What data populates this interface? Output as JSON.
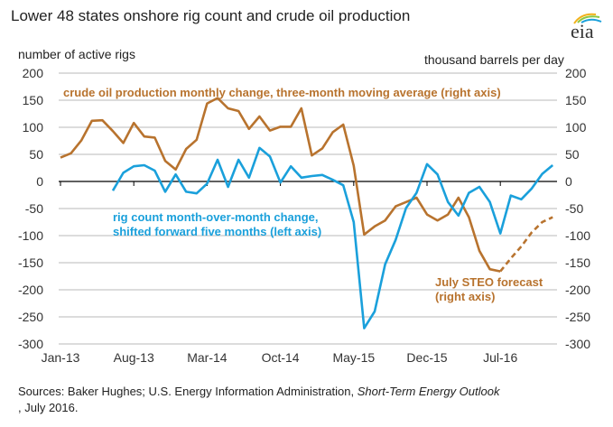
{
  "title": "Lower 48 states onshore rig count and crude oil production",
  "logo_text": "eia",
  "sources": {
    "prefix": "Sources: Baker Hughes; U.S. Energy Information Administration, ",
    "italic": "Short-Term Energy Outlook",
    "suffix": ", July 2016."
  },
  "chart_data": {
    "type": "line",
    "ylabel_left": "number of active rigs",
    "ylabel_right": "thousand barrels per day",
    "ylim": [
      -300,
      200
    ],
    "yticks": [
      "200",
      "150",
      "100",
      "50",
      "0",
      "-50",
      "-100",
      "-150",
      "-200",
      "-250",
      "-300"
    ],
    "xticks": [
      "Jan-13",
      "Aug-13",
      "Mar-14",
      "Oct-14",
      "May-15",
      "Dec-15",
      "Jul-16"
    ],
    "x_start": "Jan-13",
    "x_end": "Dec-16",
    "grid": true,
    "colors": {
      "production": "#B8732E",
      "rigs": "#1AA0DB"
    },
    "annotations": {
      "production": "crude oil production monthly change, three-month moving average (right axis)",
      "rigs_line1": "rig count month-over-month change,",
      "rigs_line2": "shifted forward five months (left axis)",
      "forecast_line1": "July STEO forecast",
      "forecast_line2": "(right axis)"
    },
    "series": [
      {
        "key": "production",
        "start": "Jan-13",
        "values": [
          44,
          52,
          76,
          112,
          113,
          93,
          71,
          108,
          83,
          81,
          38,
          22,
          60,
          77,
          144,
          154,
          135,
          130,
          97,
          120,
          94,
          101,
          101,
          135,
          48,
          61,
          91,
          105,
          29,
          -98,
          -83,
          -72,
          -46,
          -38,
          -30,
          -61,
          -72,
          -61,
          -30,
          -66,
          -128,
          -162,
          -166
        ]
      },
      {
        "key": "forecast",
        "start": "Jul-16",
        "values": [
          -166,
          -142,
          -120,
          -94,
          -75,
          -66
        ]
      },
      {
        "key": "rigs",
        "start": "Jun-13",
        "values": [
          -17,
          16,
          28,
          30,
          20,
          -19,
          13,
          -19,
          -22,
          -4,
          40,
          -10,
          40,
          7,
          62,
          46,
          -2,
          28,
          7,
          10,
          12,
          3,
          -7,
          -75,
          -271,
          -240,
          -153,
          -108,
          -49,
          -21,
          32,
          13,
          -38,
          -63,
          -21,
          -10,
          -38,
          -96,
          -26,
          -33,
          -13,
          14,
          30
        ]
      }
    ]
  }
}
